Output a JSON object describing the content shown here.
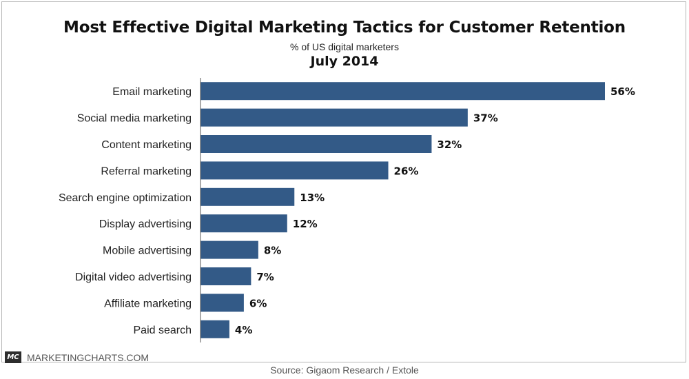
{
  "header": {
    "title": "Most Effective Digital Marketing Tactics for Customer Retention",
    "subtitle": "% of US digital marketers",
    "date": "July 2014"
  },
  "footer": {
    "brand_logo": "MC",
    "brand_name": "MARKETINGCHARTS.COM",
    "source": "Source: Gigaom Research / Extole"
  },
  "colors": {
    "bar": "#335a87",
    "axis": "#555555"
  },
  "chart_data": {
    "type": "bar",
    "orientation": "horizontal",
    "title": "Most Effective Digital Marketing Tactics for Customer Retention",
    "subtitle": "% of US digital marketers",
    "categories": [
      "Email marketing",
      "Social media marketing",
      "Content marketing",
      "Referral marketing",
      "Search engine optimization",
      "Display advertising",
      "Mobile advertising",
      "Digital video advertising",
      "Affiliate marketing",
      "Paid search"
    ],
    "values": [
      56,
      37,
      32,
      26,
      13,
      12,
      8,
      7,
      6,
      4
    ],
    "value_labels": [
      "56%",
      "37%",
      "32%",
      "26%",
      "13%",
      "12%",
      "8%",
      "7%",
      "6%",
      "4%"
    ],
    "xlim": [
      0,
      56
    ],
    "grid": false,
    "legend": "none"
  }
}
